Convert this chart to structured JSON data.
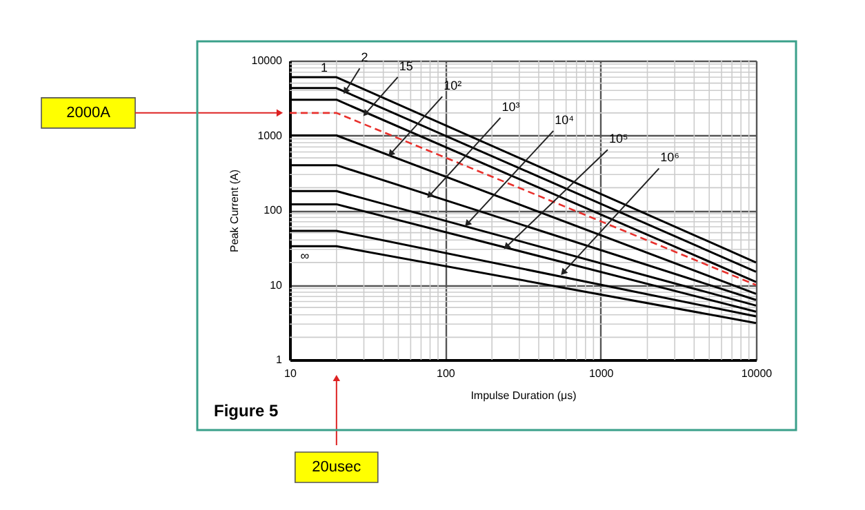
{
  "chart_data": {
    "type": "line",
    "title": "Figure 5",
    "xlabel": "Impulse Duration (μs)",
    "ylabel": "Peak Current (A)",
    "log": "xy",
    "grid": true,
    "xlim": [
      10,
      10000
    ],
    "ylim": [
      1,
      10000
    ],
    "xticks": [
      10,
      100,
      1000,
      10000
    ],
    "yticks": [
      1,
      10,
      100,
      1000,
      10000
    ],
    "series": [
      {
        "color": "#000000",
        "x": [
          10,
          20,
          10000
        ],
        "values": [
          6000,
          6000,
          20
        ]
      },
      {
        "color": "#000000",
        "x": [
          10,
          20,
          10000
        ],
        "values": [
          4300,
          4300,
          15
        ]
      },
      {
        "color": "#000000",
        "x": [
          10,
          20,
          10000
        ],
        "values": [
          3000,
          3000,
          11
        ]
      },
      {
        "color": "#e8302c",
        "line_style": "dashed",
        "x": [
          10,
          20,
          10000
        ],
        "values": [
          2000,
          2000,
          10
        ]
      },
      {
        "color": "#000000",
        "x": [
          10,
          20,
          10000
        ],
        "values": [
          1000,
          1000,
          7.6
        ]
      },
      {
        "color": "#000000",
        "x": [
          10,
          20,
          10000
        ],
        "values": [
          400,
          400,
          6.3
        ]
      },
      {
        "color": "#000000",
        "x": [
          10,
          20,
          10000
        ],
        "values": [
          180,
          180,
          5.3
        ]
      },
      {
        "color": "#000000",
        "x": [
          10,
          20,
          10000
        ],
        "values": [
          120,
          120,
          4.4
        ]
      },
      {
        "color": "#000000",
        "x": [
          10,
          20,
          10000
        ],
        "values": [
          53,
          53,
          3.8
        ]
      },
      {
        "color": "#000000",
        "x": [
          10,
          20,
          10000
        ],
        "values": [
          33,
          33,
          3.1
        ]
      }
    ],
    "annotations": [
      "1",
      {
        "text": "2",
        "x": 23,
        "y": 4000
      },
      {
        "text": "15",
        "x": 31,
        "y": 2000
      },
      {
        "text": "10²",
        "x": 45,
        "y": 580
      },
      {
        "text": "10³",
        "x": 80,
        "y": 160
      },
      {
        "text": "10⁴",
        "x": 140,
        "y": 67
      },
      {
        "text": "10⁵",
        "x": 250,
        "y": 33
      },
      {
        "text": "10⁶",
        "x": 580,
        "y": 15
      },
      "∞",
      "2000A",
      "20usec"
    ]
  }
}
